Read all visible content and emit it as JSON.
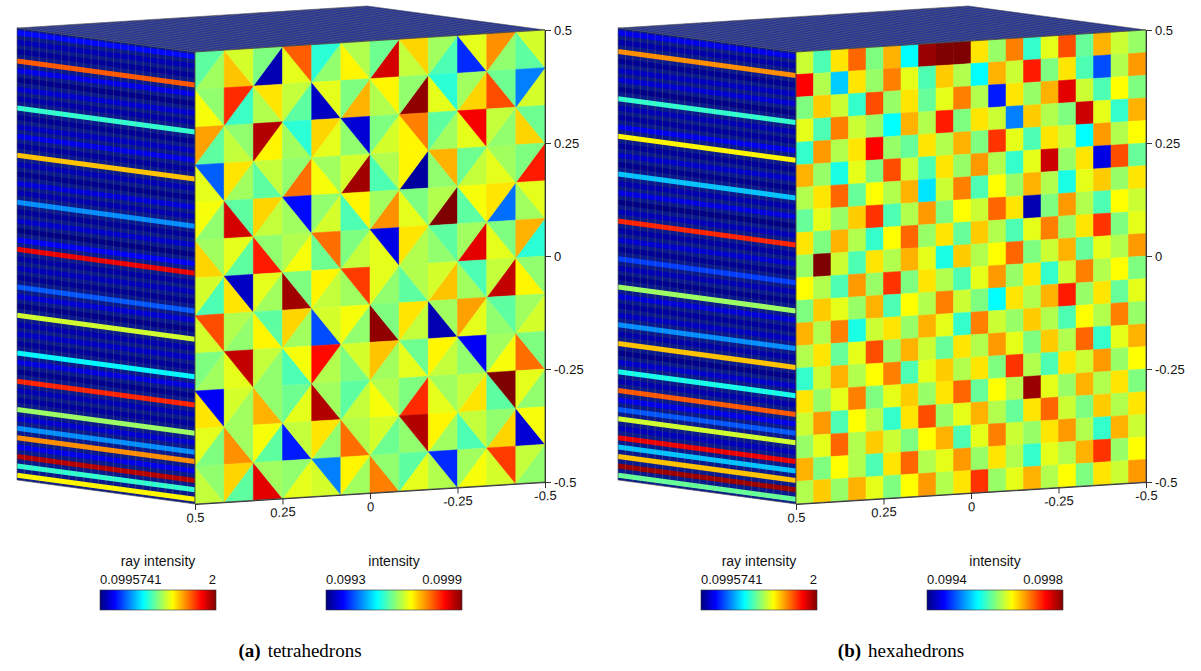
{
  "chart_data": [
    {
      "type": "heatmap",
      "panel_label": "(a)",
      "title": "tetrahedrons",
      "marker": "triangle",
      "xlim": [
        0.5,
        -0.5
      ],
      "xticks": [
        0.5,
        0.25,
        0,
        -0.25,
        -0.5
      ],
      "ylim": [
        -0.5,
        0.5
      ],
      "yticks": [
        0.5,
        0.25,
        0,
        -0.25,
        -0.5
      ],
      "cells": [
        [
          0.09962,
          0.09958,
          0.09971,
          0.09965,
          0.09933,
          0.0996,
          0.09966,
          0.09977,
          0.09961,
          0.09955,
          0.09968,
          0.09963,
          0.09985,
          0.09959,
          0.09964,
          0.0997,
          0.09957,
          0.09962,
          0.0994,
          0.09966,
          0.09961,
          0.09974,
          0.09958,
          0.09965
        ],
        [
          0.09967,
          0.09961,
          0.09956,
          0.0998,
          0.09963,
          0.09969,
          0.09958,
          0.09964,
          0.09934,
          0.09966,
          0.09972,
          0.0996,
          0.09963,
          0.09968,
          0.09989,
          0.09961,
          0.09966,
          0.09955,
          0.0997,
          0.09962,
          0.09978,
          0.09959,
          0.09965,
          0.09945
        ],
        [
          0.09958,
          0.09973,
          0.09964,
          0.09961,
          0.09968,
          0.09987,
          0.09962,
          0.09955,
          0.09966,
          0.0997,
          0.09961,
          0.09935,
          0.09965,
          0.0996,
          0.09968,
          0.09975,
          0.09962,
          0.09958,
          0.09966,
          0.09983,
          0.09961,
          0.09964,
          0.0997,
          0.09959
        ],
        [
          0.09966,
          0.09943,
          0.09962,
          0.09969,
          0.09958,
          0.09964,
          0.09976,
          0.09961,
          0.09967,
          0.09962,
          0.09988,
          0.09965,
          0.09957,
          0.09963,
          0.09932,
          0.09968,
          0.09961,
          0.09972,
          0.09964,
          0.09959,
          0.09966,
          0.09962,
          0.09981,
          0.0996
        ],
        [
          0.09961,
          0.09967,
          0.09985,
          0.09958,
          0.09964,
          0.0997,
          0.09962,
          0.09938,
          0.09965,
          0.09961,
          0.09957,
          0.09968,
          0.09974,
          0.09962,
          0.09966,
          0.0996,
          0.0999,
          0.09963,
          0.09958,
          0.09967,
          0.09944,
          0.09969,
          0.09962,
          0.09966
        ],
        [
          0.0997,
          0.09962,
          0.09958,
          0.09966,
          0.09981,
          0.09961,
          0.09967,
          0.09963,
          0.09959,
          0.09976,
          0.09964,
          0.0996,
          0.09966,
          0.09936,
          0.09963,
          0.09969,
          0.09961,
          0.09958,
          0.09984,
          0.09962,
          0.09966,
          0.0996,
          0.09955,
          0.09972
        ],
        [
          0.09957,
          0.09965,
          0.09969,
          0.09934,
          0.09962,
          0.09966,
          0.09988,
          0.0996,
          0.09964,
          0.09968,
          0.09962,
          0.09979,
          0.09961,
          0.09966,
          0.09958,
          0.09963,
          0.09971,
          0.09965,
          0.09962,
          0.09957,
          0.09986,
          0.09964,
          0.09968,
          0.09961
        ],
        [
          0.09965,
          0.09978,
          0.09961,
          0.09963,
          0.09968,
          0.09958,
          0.09962,
          0.0997,
          0.09942,
          0.09965,
          0.09961,
          0.09967,
          0.09989,
          0.0996,
          0.09964,
          0.09969,
          0.09933,
          0.09962,
          0.09966,
          0.09973,
          0.09961,
          0.09958,
          0.09965,
          0.09962
        ],
        [
          0.09962,
          0.0996,
          0.09966,
          0.09986,
          0.09961,
          0.09964,
          0.09957,
          0.09967,
          0.09963,
          0.09982,
          0.0996,
          0.09965,
          0.09962,
          0.09971,
          0.09966,
          0.09959,
          0.09964,
          0.09968,
          0.09961,
          0.09937,
          0.09967,
          0.09962,
          0.09976,
          0.0996
        ],
        [
          0.09969,
          0.09937,
          0.09962,
          0.09965,
          0.09972,
          0.09961,
          0.09966,
          0.09959,
          0.09987,
          0.09962,
          0.09964,
          0.09958,
          0.09967,
          0.09963,
          0.0998,
          0.0996,
          0.09966,
          0.09962,
          0.09969,
          0.09964,
          0.09958,
          0.0999,
          0.09961,
          0.09966
        ],
        [
          0.0996,
          0.09966,
          0.09974,
          0.09962,
          0.09958,
          0.09967,
          0.09939,
          0.09964,
          0.09961,
          0.09969,
          0.09976,
          0.09963,
          0.09959,
          0.09965,
          0.09961,
          0.09987,
          0.09962,
          0.09968,
          0.09957,
          0.09964,
          0.0997,
          0.09961,
          0.09935,
          0.09967
        ],
        [
          0.09964,
          0.09961,
          0.09958,
          0.0997,
          0.09984,
          0.09962,
          0.09966,
          0.09961,
          0.09965,
          0.09945,
          0.09962,
          0.09968,
          0.09975,
          0.09961,
          0.09966,
          0.09958,
          0.09963,
          0.0994,
          0.09967,
          0.09962,
          0.09965,
          0.09979,
          0.09961,
          0.09964
        ]
      ],
      "colorbar": {
        "title": "intensity",
        "range": [
          0.0993,
          0.0999
        ],
        "ticks": [
          0.0993,
          0.0999
        ]
      },
      "rays": {
        "title": "ray intensity",
        "range": [
          0.0995741,
          2
        ],
        "ticks": [
          0.0995741,
          2
        ],
        "values": [
          0.35,
          0.2,
          0.15,
          1.6,
          0.3,
          0.12,
          0.25,
          0.18,
          0.9,
          0.14,
          0.22,
          0.3,
          0.16,
          1.4,
          0.2,
          0.13,
          0.27,
          0.19,
          0.6,
          0.15,
          0.24,
          0.11,
          0.33,
          1.8,
          0.17,
          0.21,
          0.14,
          0.5,
          0.26,
          0.12,
          1.2,
          0.19,
          0.23,
          0.15,
          0.8,
          0.28,
          0.13,
          1.7,
          0.2,
          0.16,
          1.1,
          0.25,
          0.6,
          1.5,
          0.3,
          1.9,
          0.9,
          1.3
        ]
      }
    },
    {
      "type": "heatmap",
      "panel_label": "(b)",
      "title": "hexahedrons",
      "marker": "square",
      "xlim": [
        0.5,
        -0.5
      ],
      "xticks": [
        0.5,
        0.25,
        0,
        -0.25,
        -0.5
      ],
      "ylim": [
        -0.5,
        0.5
      ],
      "yticks": [
        0.5,
        0.25,
        0,
        -0.25,
        -0.5
      ],
      "cells": [
        [
          0.09963,
          0.09958,
          0.09966,
          0.09971,
          0.0996,
          0.09968,
          0.09955,
          0.09979,
          0.0998,
          0.0998,
          0.09966,
          0.09961,
          0.0997,
          0.09957,
          0.09964,
          0.09972,
          0.09959,
          0.09968,
          0.09963,
          0.09961
        ],
        [
          0.09975,
          0.09962,
          0.09953,
          0.09966,
          0.09961,
          0.0997,
          0.09964,
          0.09958,
          0.09967,
          0.09962,
          0.09955,
          0.09968,
          0.09963,
          0.09974,
          0.0996,
          0.09966,
          0.09958,
          0.09948,
          0.09962,
          0.09969
        ],
        [
          0.0996,
          0.09967,
          0.09963,
          0.09957,
          0.09972,
          0.09961,
          0.09966,
          0.09959,
          0.09964,
          0.0997,
          0.09962,
          0.09946,
          0.09966,
          0.09961,
          0.09968,
          0.09976,
          0.09963,
          0.09958,
          0.09965,
          0.0996
        ],
        [
          0.09964,
          0.09958,
          0.0997,
          0.09963,
          0.09961,
          0.09955,
          0.09968,
          0.09962,
          0.09974,
          0.0996,
          0.09966,
          0.09963,
          0.0995,
          0.09967,
          0.09962,
          0.0996,
          0.09977,
          0.09964,
          0.09957,
          0.09968
        ],
        [
          0.09957,
          0.09969,
          0.09962,
          0.09966,
          0.09975,
          0.09961,
          0.09959,
          0.09966,
          0.09962,
          0.09968,
          0.0996,
          0.09973,
          0.09964,
          0.09958,
          0.09966,
          0.09963,
          0.09955,
          0.09969,
          0.09962,
          0.09965
        ],
        [
          0.09968,
          0.09961,
          0.09956,
          0.09964,
          0.0996,
          0.09972,
          0.09963,
          0.09958,
          0.09966,
          0.09961,
          0.09969,
          0.09962,
          0.09957,
          0.09964,
          0.09977,
          0.09961,
          0.09966,
          0.09944,
          0.09972,
          0.09959
        ],
        [
          0.09962,
          0.09966,
          0.09971,
          0.09959,
          0.09965,
          0.09962,
          0.09968,
          0.09954,
          0.09963,
          0.0997,
          0.09958,
          0.09965,
          0.09961,
          0.09968,
          0.09962,
          0.09956,
          0.09964,
          0.09967,
          0.09961,
          0.09966
        ],
        [
          0.09959,
          0.09964,
          0.09961,
          0.09967,
          0.09973,
          0.09958,
          0.09962,
          0.09969,
          0.0996,
          0.09965,
          0.09963,
          0.09971,
          0.09966,
          0.09942,
          0.0996,
          0.09969,
          0.09962,
          0.09958,
          0.09965,
          0.09963
        ],
        [
          0.09966,
          0.0996,
          0.09968,
          0.09962,
          0.09957,
          0.09965,
          0.09971,
          0.09961,
          0.09966,
          0.09959,
          0.09967,
          0.09962,
          0.09958,
          0.09964,
          0.0997,
          0.09961,
          0.09966,
          0.09973,
          0.0996,
          0.09964
        ],
        [
          0.09961,
          0.0998,
          0.09963,
          0.09958,
          0.09966,
          0.09962,
          0.09968,
          0.09964,
          0.09956,
          0.09967,
          0.09962,
          0.09965,
          0.09971,
          0.0996,
          0.09963,
          0.09968,
          0.09959,
          0.09964,
          0.09962,
          0.09969
        ],
        [
          0.09965,
          0.09962,
          0.09958,
          0.09969,
          0.09961,
          0.09973,
          0.0996,
          0.09966,
          0.09962,
          0.09958,
          0.09964,
          0.09969,
          0.09961,
          0.09966,
          0.09957,
          0.09963,
          0.0997,
          0.09962,
          0.09965,
          0.0996
        ],
        [
          0.0996,
          0.09967,
          0.09964,
          0.09961,
          0.09968,
          0.09958,
          0.09965,
          0.09962,
          0.0997,
          0.09963,
          0.0996,
          0.09955,
          0.09966,
          0.09962,
          0.09968,
          0.09974,
          0.09961,
          0.09966,
          0.09959,
          0.09964
        ],
        [
          0.09968,
          0.09962,
          0.0997,
          0.09956,
          0.09963,
          0.09966,
          0.09961,
          0.09968,
          0.09964,
          0.09957,
          0.0997,
          0.09963,
          0.09961,
          0.09967,
          0.09962,
          0.09958,
          0.09965,
          0.09962,
          0.0997,
          0.09961
        ],
        [
          0.09962,
          0.09966,
          0.09959,
          0.09964,
          0.09972,
          0.09961,
          0.09968,
          0.09963,
          0.09959,
          0.09966,
          0.09962,
          0.09969,
          0.09964,
          0.0996,
          0.09967,
          0.09962,
          0.09971,
          0.09957,
          0.09964,
          0.09968
        ],
        [
          0.09957,
          0.09963,
          0.09968,
          0.09962,
          0.09965,
          0.0997,
          0.09958,
          0.09964,
          0.09967,
          0.09962,
          0.09966,
          0.0996,
          0.09973,
          0.09962,
          0.09958,
          0.09966,
          0.09963,
          0.09969,
          0.09961,
          0.09965
        ],
        [
          0.09966,
          0.09961,
          0.09964,
          0.0997,
          0.0996,
          0.09964,
          0.09967,
          0.09961,
          0.09966,
          0.09971,
          0.09959,
          0.09965,
          0.09962,
          0.09979,
          0.09964,
          0.09961,
          0.09968,
          0.09962,
          0.09966,
          0.0996
        ],
        [
          0.09963,
          0.09969,
          0.09958,
          0.09965,
          0.09962,
          0.09957,
          0.09966,
          0.09972,
          0.09961,
          0.09964,
          0.09968,
          0.09962,
          0.09959,
          0.09966,
          0.09971,
          0.09963,
          0.0996,
          0.09967,
          0.09962,
          0.09966
        ],
        [
          0.09961,
          0.09964,
          0.09971,
          0.09962,
          0.09967,
          0.09963,
          0.0996,
          0.09965,
          0.09968,
          0.09958,
          0.09964,
          0.0997,
          0.09963,
          0.09961,
          0.09966,
          0.09969,
          0.09962,
          0.09957,
          0.09968,
          0.09963
        ],
        [
          0.09968,
          0.0996,
          0.09965,
          0.09962,
          0.09958,
          0.09966,
          0.09971,
          0.09962,
          0.09964,
          0.09969,
          0.09961,
          0.09966,
          0.09962,
          0.09957,
          0.09964,
          0.09962,
          0.09968,
          0.09973,
          0.09961,
          0.09965
        ],
        [
          0.09962,
          0.09967,
          0.09961,
          0.09968,
          0.09964,
          0.0996,
          0.09965,
          0.09969,
          0.09962,
          0.09966,
          0.09973,
          0.09961,
          0.09964,
          0.09968,
          0.09962,
          0.09965,
          0.0996,
          0.09966,
          0.09963,
          0.09969
        ]
      ],
      "colorbar": {
        "title": "intensity",
        "range": [
          0.0994,
          0.0998
        ],
        "ticks": [
          0.0994,
          0.0998
        ]
      },
      "rays": {
        "title": "ray intensity",
        "range": [
          0.0995741,
          2
        ],
        "ticks": [
          0.0995741,
          2
        ],
        "values": [
          0.3,
          0.18,
          1.5,
          0.14,
          0.22,
          0.26,
          0.12,
          0.9,
          0.2,
          0.16,
          0.31,
          1.3,
          0.15,
          0.24,
          0.13,
          0.7,
          0.19,
          0.28,
          0.11,
          0.21,
          1.7,
          0.17,
          0.25,
          0.14,
          0.45,
          0.2,
          0.13,
          1.1,
          0.27,
          0.16,
          0.22,
          0.6,
          0.18,
          1.4,
          0.12,
          0.24,
          0.85,
          0.19,
          1.6,
          0.3,
          0.5,
          1.2,
          0.21,
          1.8,
          0.7,
          1.4,
          1.95,
          1.0
        ]
      }
    }
  ]
}
